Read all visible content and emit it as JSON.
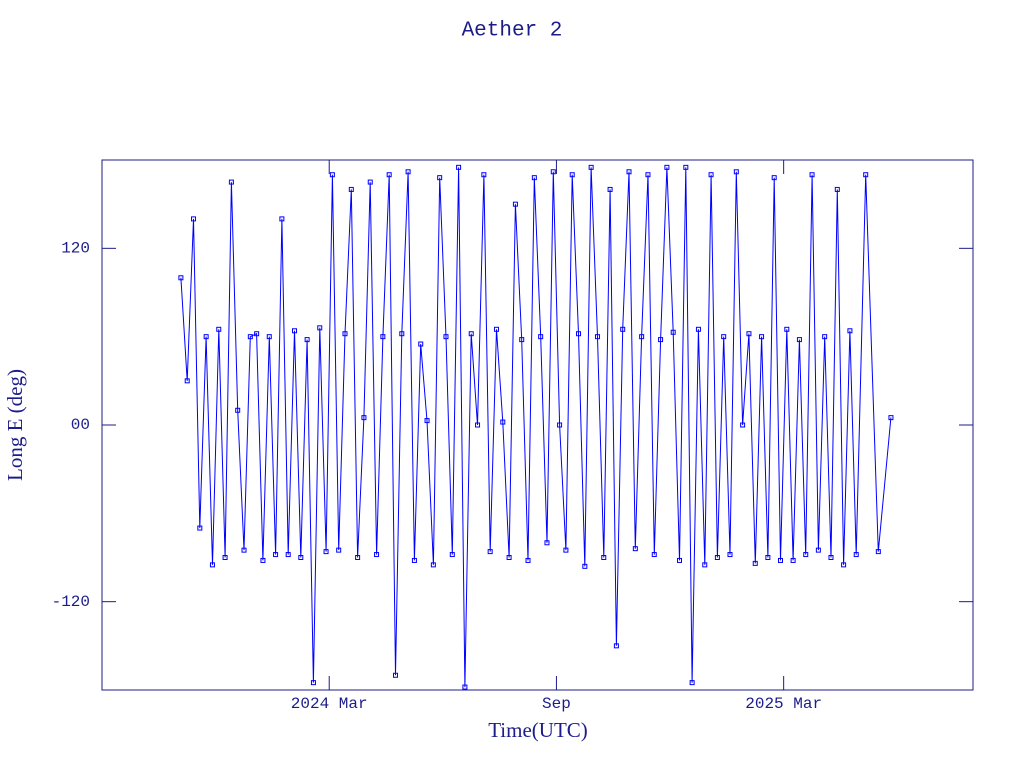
{
  "chart_data": {
    "type": "line",
    "title": "Aether 2",
    "x_label": "Time(UTC)",
    "y_label": "Long E (deg)",
    "color": "#0000ff",
    "axis_color": "#1c1c8a",
    "markers": true,
    "xlim": [
      "2023-09",
      "2025-08"
    ],
    "xticks": [
      {
        "value": "2024-03",
        "label": "2024 Mar"
      },
      {
        "value": "2024-09",
        "label": "Sep"
      },
      {
        "value": "2025-03",
        "label": "2025 Mar"
      }
    ],
    "ylim": [
      -180,
      180
    ],
    "yticks": [
      120,
      {
        "value": 0,
        "label": "00"
      },
      -120
    ],
    "x": [
      "2023-11",
      "2023-11",
      "2023-11",
      "2023-11",
      "2023-11",
      "2023-11",
      "2023-12",
      "2023-12",
      "2023-12",
      "2023-12",
      "2023-12",
      "2023-12",
      "2024-01",
      "2024-01",
      "2024-01",
      "2024-01",
      "2024-01",
      "2024-01",
      "2024-02",
      "2024-02",
      "2024-02",
      "2024-02",
      "2024-02",
      "2024-02",
      "2024-03",
      "2024-03",
      "2024-03",
      "2024-03",
      "2024-03",
      "2024-03",
      "2024-04",
      "2024-04",
      "2024-04",
      "2024-04",
      "2024-04",
      "2024-04",
      "2024-05",
      "2024-05",
      "2024-05",
      "2024-05",
      "2024-05",
      "2024-05",
      "2024-06",
      "2024-06",
      "2024-06",
      "2024-06",
      "2024-06",
      "2024-06",
      "2024-07",
      "2024-07",
      "2024-07",
      "2024-07",
      "2024-07",
      "2024-07",
      "2024-08",
      "2024-08",
      "2024-08",
      "2024-08",
      "2024-08",
      "2024-08",
      "2024-09",
      "2024-09",
      "2024-09",
      "2024-09",
      "2024-09",
      "2024-09",
      "2024-10",
      "2024-10",
      "2024-10",
      "2024-10",
      "2024-10",
      "2024-10",
      "2024-11",
      "2024-11",
      "2024-11",
      "2024-11",
      "2024-11",
      "2024-11",
      "2024-12",
      "2024-12",
      "2024-12",
      "2024-12",
      "2024-12",
      "2024-12",
      "2025-01",
      "2025-01",
      "2025-01",
      "2025-01",
      "2025-01",
      "2025-01",
      "2025-02",
      "2025-02",
      "2025-02",
      "2025-02",
      "2025-02",
      "2025-02",
      "2025-03",
      "2025-03",
      "2025-03",
      "2025-03",
      "2025-03",
      "2025-03",
      "2025-04",
      "2025-04",
      "2025-04",
      "2025-04",
      "2025-04",
      "2025-04",
      "2025-05",
      "2025-05",
      "2025-05"
    ],
    "values": [
      100,
      30,
      140,
      -70,
      60,
      -95,
      65,
      -90,
      165,
      10,
      -85,
      60,
      62,
      -92,
      60,
      -88,
      140,
      -88,
      64,
      -90,
      58,
      -175,
      66,
      -86,
      170,
      -85,
      62,
      160,
      -90,
      5,
      165,
      -88,
      60,
      170,
      -170,
      62,
      172,
      -92,
      55,
      3,
      -95,
      168,
      60,
      -88,
      175,
      -178,
      62,
      0,
      170,
      -86,
      65,
      2,
      -90,
      150,
      58,
      -92,
      168,
      60,
      -80,
      172,
      0,
      -85,
      170,
      62,
      -96,
      175,
      60,
      -90,
      160,
      -150,
      65,
      172,
      -84,
      60,
      170,
      -88,
      58,
      175,
      63,
      -92,
      175,
      -175,
      65,
      -95,
      170,
      -90,
      60,
      -88,
      172,
      0,
      62,
      -94,
      60,
      -90,
      168,
      -92,
      65,
      -92,
      58,
      -88,
      170,
      -85,
      60,
      -90,
      160,
      -95,
      64,
      -88,
      170,
      -86,
      5
    ]
  }
}
